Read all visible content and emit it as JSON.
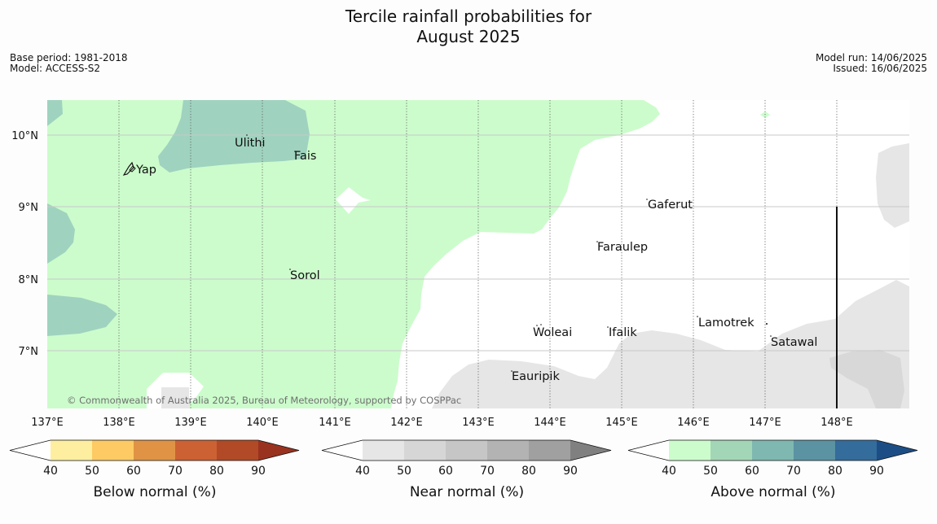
{
  "title": {
    "line1": "Tercile rainfall probabilities for",
    "line2": "August 2025"
  },
  "meta_left": {
    "base_period": "Base period: 1981-2018",
    "model": "Model: ACCESS-S2"
  },
  "meta_right": {
    "model_run": "Model run: 14/06/2025",
    "issued": "Issued: 16/06/2025"
  },
  "map": {
    "lat_labels": [
      "10°N",
      "9°N",
      "8°N",
      "7°N"
    ],
    "lon_labels": [
      "137°E",
      "138°E",
      "139°E",
      "140°E",
      "141°E",
      "142°E",
      "143°E",
      "144°E",
      "145°E",
      "146°E",
      "147°E",
      "148°E"
    ],
    "places": [
      "Ulithi",
      "Fais",
      "Yap",
      "Gaferut",
      "Faraulep",
      "Sorol",
      "Lamotrek",
      "Woleai",
      "Ifalik",
      "Satawal",
      "Eauripik"
    ],
    "copyright": "© Commonwealth of Australia 2025, Bureau of Meteorology, supported by COSPPac"
  },
  "legends": [
    {
      "label": "Below normal (%)",
      "ticks": [
        "40",
        "50",
        "60",
        "70",
        "80",
        "90"
      ],
      "colors": [
        "#ffffff",
        "#feeea0",
        "#fdca63",
        "#e09345",
        "#cc6133",
        "#b24a27",
        "#99321f"
      ]
    },
    {
      "label": "Near normal (%)",
      "ticks": [
        "40",
        "50",
        "60",
        "70",
        "80",
        "90"
      ],
      "colors": [
        "#ffffff",
        "#e6e6e6",
        "#d6d6d6",
        "#c6c6c6",
        "#b3b3b3",
        "#a0a0a0",
        "#808080"
      ]
    },
    {
      "label": "Above normal (%)",
      "ticks": [
        "40",
        "50",
        "60",
        "70",
        "80",
        "90"
      ],
      "colors": [
        "#ffffff",
        "#ccfccc",
        "#a3d6b6",
        "#7fb8b0",
        "#5b93a3",
        "#346c9c",
        "#1c4e85"
      ]
    }
  ],
  "fill_colors": {
    "above_40_50": "#ccfccc",
    "above_50_60": "#9fd3bf",
    "near_40_50": "#e6e6e6",
    "near_50_60": "#d8d8d8"
  }
}
